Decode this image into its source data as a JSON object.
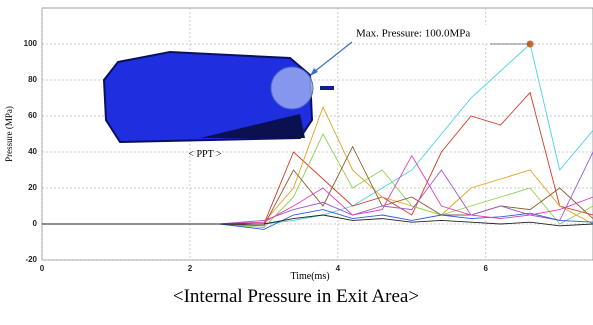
{
  "chart_data": {
    "type": "line",
    "y_label": "Pressure (MPa)",
    "x_label": "Time(ms)",
    "annotation": "Max. Pressure: 100.0MPa",
    "inset_label": "< PPT >",
    "caption": "<Internal Pressure in Exit Area>",
    "xlim": [
      0,
      7.45
    ],
    "ylim": [
      -20,
      120
    ],
    "xticks": [
      0,
      2,
      4,
      6
    ],
    "yticks": [
      -20,
      0,
      20,
      40,
      60,
      80,
      100
    ],
    "grid": true,
    "x": [
      0,
      2.4,
      3.0,
      3.4,
      3.8,
      4.2,
      4.6,
      5.0,
      5.4,
      5.8,
      6.2,
      6.6,
      7.0,
      7.45
    ],
    "series": [
      {
        "color": "#4cd3e0",
        "values": [
          0,
          0,
          0,
          2,
          5,
          10,
          20,
          30,
          50,
          70,
          85,
          100,
          30,
          52
        ]
      },
      {
        "color": "#d43a2a",
        "values": [
          0,
          0,
          0,
          40,
          25,
          10,
          15,
          5,
          40,
          60,
          55,
          73,
          10,
          5
        ]
      },
      {
        "color": "#e3a020",
        "values": [
          0,
          0,
          1,
          20,
          65,
          30,
          15,
          10,
          5,
          20,
          25,
          30,
          10,
          0
        ]
      },
      {
        "color": "#8fd14f",
        "values": [
          0,
          0,
          -2,
          15,
          50,
          20,
          30,
          10,
          5,
          10,
          15,
          20,
          0,
          10
        ]
      },
      {
        "color": "#8b5a2b",
        "values": [
          0,
          0,
          -1,
          30,
          10,
          43,
          10,
          15,
          5,
          5,
          10,
          8,
          20,
          3
        ]
      },
      {
        "color": "#9b59d0",
        "values": [
          0,
          0,
          2,
          8,
          12,
          5,
          10,
          8,
          30,
          5,
          10,
          5,
          2,
          40
        ]
      },
      {
        "color": "#2a5bd7",
        "values": [
          0,
          0,
          -3,
          5,
          8,
          3,
          5,
          2,
          5,
          3,
          4,
          6,
          2,
          1
        ]
      },
      {
        "color": "#e040c0",
        "values": [
          0,
          0,
          1,
          10,
          20,
          5,
          8,
          38,
          10,
          5,
          3,
          5,
          8,
          15
        ]
      },
      {
        "color": "#222222",
        "values": [
          0,
          0,
          0,
          3,
          5,
          2,
          3,
          1,
          2,
          1,
          0,
          1,
          -1,
          0
        ]
      }
    ],
    "max_point": {
      "x": 6.6,
      "y": 100,
      "color": "#c8692a"
    }
  }
}
